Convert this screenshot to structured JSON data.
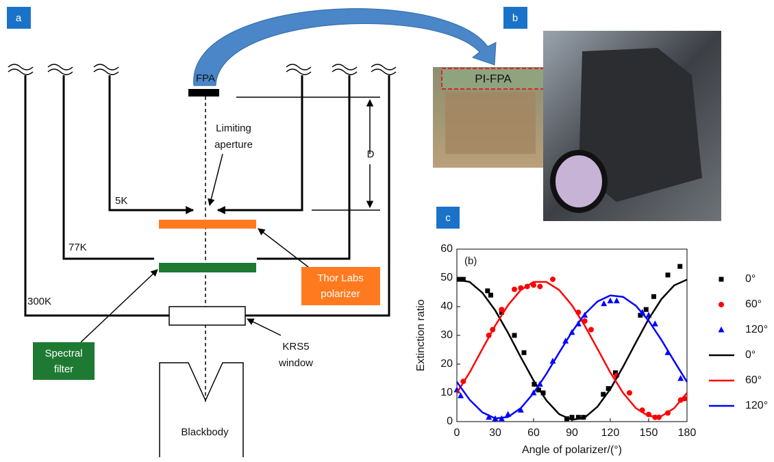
{
  "panel_labels": [
    "a",
    "b",
    "c"
  ],
  "diagram": {
    "fpa": "FPA",
    "limiting_aperture": [
      "Limiting",
      "aperture"
    ],
    "distance": "D",
    "stage_5k": "5K",
    "stage_77k": "77K",
    "stage_300k": "300K",
    "polarizer": [
      "Thor Labs",
      "polarizer"
    ],
    "filter": [
      "Spectral",
      "filter"
    ],
    "window": [
      "KRS5",
      "window"
    ],
    "source": "Blackbody"
  },
  "photo": {
    "chip_label": "PI-FPA"
  },
  "chart_data": {
    "type": "scatter",
    "annotation": "(b)",
    "x_label": "Angle of polarizer/(°)",
    "y_label": "Extinction ratio",
    "xlim": [
      0,
      180
    ],
    "xticks": [
      0,
      30,
      60,
      90,
      120,
      150,
      180
    ],
    "ylim": [
      0,
      60
    ],
    "yticks": [
      0,
      10,
      20,
      30,
      40,
      50,
      60
    ],
    "series": [
      {
        "name": "0°",
        "color": "#000000",
        "style": "marker",
        "marker": "square",
        "x": [
          2,
          5,
          24,
          26.5,
          35,
          45,
          52.5,
          60.5,
          64,
          67.5,
          86,
          90,
          95,
          99,
          114.5,
          118.5,
          124,
          143.5,
          148,
          154,
          165,
          174.5
        ],
        "values": [
          49.5,
          49.5,
          45.5,
          44,
          38,
          30,
          24,
          13,
          11,
          10,
          1,
          1.5,
          1.5,
          1.5,
          9.5,
          11.5,
          17,
          37,
          39,
          43.5,
          51,
          54
        ]
      },
      {
        "name": "60°",
        "color": "#ff0000",
        "style": "marker",
        "marker": "circle",
        "x": [
          5,
          25,
          28,
          35,
          45,
          50,
          55,
          60,
          65,
          75,
          95,
          100,
          105,
          125,
          135,
          145,
          150,
          155,
          158,
          165,
          175,
          178
        ],
        "values": [
          14,
          30,
          32,
          39,
          46,
          46.5,
          47,
          47.5,
          47,
          49.5,
          38,
          35,
          32,
          16,
          10,
          4,
          2.5,
          1.5,
          1.5,
          3,
          7.5,
          8
        ]
      },
      {
        "name": "120°",
        "color": "#0000ff",
        "style": "marker",
        "marker": "triangle",
        "x": [
          0,
          3,
          25,
          30,
          35,
          40,
          50,
          60,
          65,
          75,
          85,
          90,
          95,
          100,
          115,
          120,
          125,
          145,
          150,
          155,
          165,
          175
        ],
        "values": [
          11,
          9,
          1.5,
          1,
          1,
          2.5,
          4,
          10,
          13,
          21,
          28,
          31,
          34,
          37,
          41,
          42,
          42,
          38,
          37,
          34,
          24,
          15
        ]
      },
      {
        "name": "0°",
        "color": "#000000",
        "style": "line",
        "x": [
          0,
          10,
          20,
          30,
          40,
          50,
          60,
          70,
          80,
          90,
          100,
          110,
          120,
          130,
          140,
          150,
          160,
          170,
          180
        ],
        "values": [
          49.4,
          48.6,
          44.8,
          38.7,
          30.9,
          22.4,
          14.3,
          7.4,
          2.6,
          0.6,
          1.4,
          5.2,
          11.3,
          19.1,
          27.5,
          35.7,
          42.6,
          47.4,
          49.4
        ]
      },
      {
        "name": "60°",
        "color": "#ff0000",
        "style": "line",
        "x": [
          0,
          10,
          20,
          30,
          40,
          50,
          60,
          70,
          80,
          90,
          100,
          110,
          120,
          130,
          140,
          150,
          160,
          170,
          180
        ],
        "values": [
          10,
          17.1,
          25.3,
          33.4,
          40.5,
          45.8,
          48.6,
          48.6,
          45.8,
          40.5,
          33.4,
          25.3,
          17.1,
          10,
          4.7,
          1.9,
          1.9,
          4.7,
          10
        ]
      },
      {
        "name": "120°",
        "color": "#0000ff",
        "style": "line",
        "x": [
          0,
          10,
          20,
          30,
          40,
          50,
          60,
          70,
          80,
          90,
          100,
          110,
          120,
          130,
          140,
          150,
          160,
          170,
          180
        ],
        "values": [
          13.8,
          7.6,
          3.2,
          1.1,
          1.6,
          4.7,
          9.9,
          16.6,
          24,
          31.2,
          37.4,
          41.8,
          43.9,
          43.4,
          40.3,
          35.1,
          28.4,
          21,
          13.8
        ]
      }
    ]
  }
}
